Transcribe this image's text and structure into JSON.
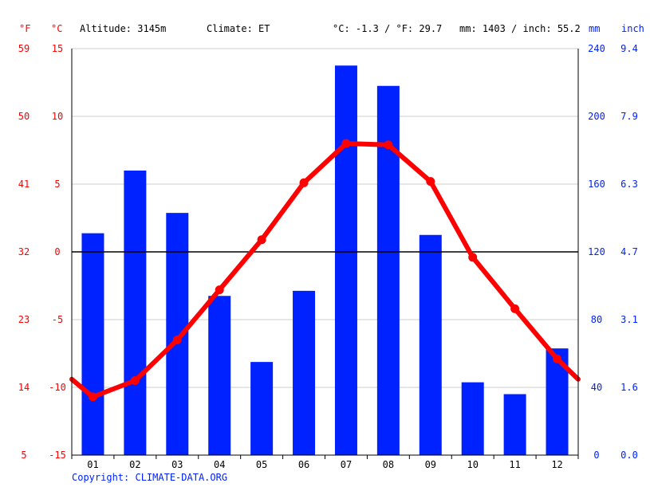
{
  "header": {
    "unit_f": "°F",
    "unit_c": "°C",
    "altitude": "Altitude: 3145m",
    "climate": "Climate: ET",
    "temp_avg": "°C: -1.3 / °F: 29.7",
    "precip_total": "mm: 1403 / inch: 55.2",
    "unit_mm": "mm",
    "unit_inch": "inch"
  },
  "footer": {
    "copyright": "Copyright: CLIMATE-DATA.ORG"
  },
  "colors": {
    "bars": "#0022ff",
    "temperature_line": "#ff0000",
    "grid": "#cccccc",
    "zero_line": "#000000"
  },
  "chart_data": {
    "type": "bar",
    "categories": [
      "01",
      "02",
      "03",
      "04",
      "05",
      "06",
      "07",
      "08",
      "09",
      "10",
      "11",
      "12"
    ],
    "series": [
      {
        "type": "bar",
        "axis": "right",
        "values": [
          131,
          168,
          143,
          94,
          55,
          97,
          230,
          218,
          130,
          43,
          36,
          63
        ]
      },
      {
        "type": "line",
        "axis": "left",
        "values": [
          -10.7,
          -9.5,
          -6.5,
          -2.8,
          0.9,
          5.1,
          8.0,
          7.9,
          5.2,
          -0.4,
          -4.2,
          -7.9
        ]
      }
    ],
    "line_edges": [
      -9.4,
      -9.4
    ],
    "left_axis_c": {
      "ticks": [
        "15",
        "10",
        "5",
        "0",
        "-5",
        "-10",
        "-15"
      ],
      "ylim": [
        -15,
        15
      ]
    },
    "left_axis_f": {
      "ticks": [
        "59",
        "50",
        "41",
        "32",
        "23",
        "14",
        "5"
      ]
    },
    "right_axis_mm": {
      "ticks": [
        "240",
        "200",
        "160",
        "120",
        "80",
        "40",
        "0"
      ],
      "ylim": [
        0,
        240
      ]
    },
    "right_axis_inch": {
      "ticks": [
        "9.4",
        "7.9",
        "6.3",
        "4.7",
        "3.1",
        "1.6",
        "0.0"
      ]
    },
    "grid": true
  }
}
